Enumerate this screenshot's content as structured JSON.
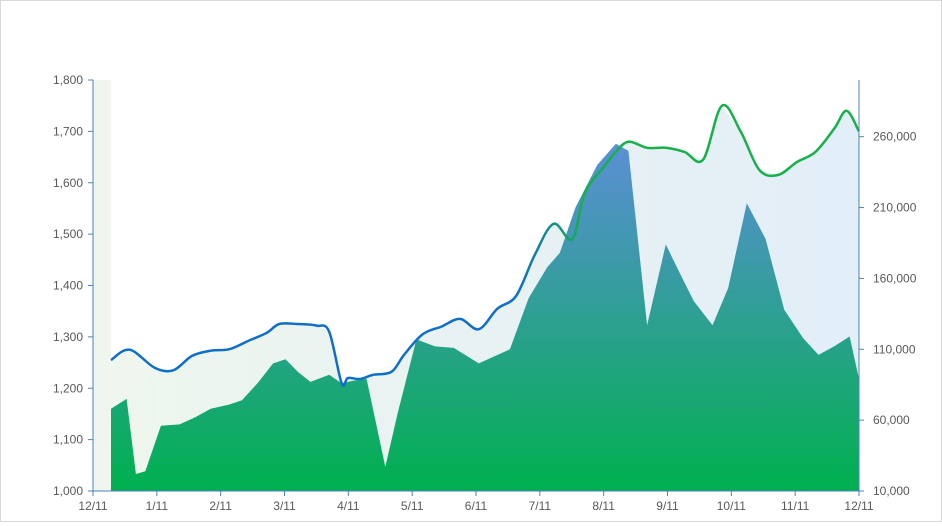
{
  "chart_data": {
    "type": "area",
    "title": "",
    "xlabel": "",
    "ylabel": "",
    "y2label": "",
    "x_tick_labels": [
      "12/11",
      "1/11",
      "2/11",
      "3/11",
      "4/11",
      "5/11",
      "6/11",
      "7/11",
      "8/11",
      "9/11",
      "10/11",
      "11/11",
      "12/11"
    ],
    "y_ticks": [
      1000,
      1100,
      1200,
      1300,
      1400,
      1500,
      1600,
      1700,
      1800
    ],
    "y_tick_labels": [
      "1,000",
      "1,100",
      "1,200",
      "1,300",
      "1,400",
      "1,500",
      "1,600",
      "1,700",
      "1,800"
    ],
    "y2_ticks": [
      10000,
      60000,
      110000,
      160000,
      210000,
      260000
    ],
    "y2_tick_labels": [
      "10,000",
      "60,000",
      "110,000",
      "160,000",
      "210,000",
      "260,000"
    ],
    "ylim": [
      1000,
      1800
    ],
    "y2lim": [
      10000,
      300000
    ],
    "grid": false,
    "legend": "none",
    "series": [
      {
        "axis": "left",
        "style": "line",
        "x": [
          0,
          0.3,
          0.7,
          1.0,
          1.3,
          1.6,
          1.9,
          2.2,
          2.5,
          2.7,
          3.0,
          3.3,
          3.5,
          3.7,
          3.8,
          4.0,
          4.2,
          4.5,
          4.7,
          5.0,
          5.3,
          5.6,
          5.9,
          6.2,
          6.5,
          6.8,
          7.1,
          7.4,
          7.6,
          7.9,
          8.1,
          8.3,
          8.6,
          8.9,
          9.2,
          9.5,
          9.8,
          10.1,
          10.4,
          10.7,
          11.0,
          11.3,
          11.6,
          11.8,
          12.0
        ],
        "values": [
          1255,
          1275,
          1240,
          1235,
          1263,
          1273,
          1276,
          1292,
          1308,
          1325,
          1325,
          1322,
          1310,
          1210,
          1220,
          1218,
          1226,
          1232,
          1265,
          1305,
          1320,
          1335,
          1315,
          1355,
          1380,
          1460,
          1520,
          1490,
          1580,
          1630,
          1660,
          1680,
          1668,
          1668,
          1660,
          1645,
          1750,
          1700,
          1625,
          1615,
          1640,
          1660,
          1705,
          1740,
          1700
        ]
      },
      {
        "axis": "right",
        "style": "area",
        "x": [
          0,
          0.25,
          0.4,
          0.55,
          0.8,
          1.1,
          1.35,
          1.6,
          1.9,
          2.1,
          2.35,
          2.6,
          2.8,
          3.0,
          3.2,
          3.5,
          3.7,
          3.9,
          4.1,
          4.4,
          4.6,
          4.9,
          5.2,
          5.5,
          5.9,
          6.1,
          6.4,
          6.7,
          7.0,
          7.2,
          7.45,
          7.8,
          8.1,
          8.3,
          8.6,
          8.9,
          9.1,
          9.35,
          9.65,
          9.9,
          10.2,
          10.5,
          10.8,
          11.1,
          11.35,
          11.6,
          11.85,
          12.0
        ],
        "values": [
          68000,
          75000,
          22000,
          24000,
          56000,
          57000,
          62000,
          68000,
          71000,
          74000,
          86000,
          100000,
          103000,
          94000,
          87000,
          92000,
          86000,
          88000,
          89000,
          27000,
          65000,
          117000,
          112000,
          111000,
          100000,
          104000,
          110000,
          146000,
          168000,
          178000,
          210000,
          240000,
          255000,
          250000,
          127000,
          184000,
          166000,
          144000,
          127000,
          153000,
          213000,
          188000,
          138000,
          118000,
          106000,
          112000,
          119000,
          89000
        ]
      }
    ]
  }
}
